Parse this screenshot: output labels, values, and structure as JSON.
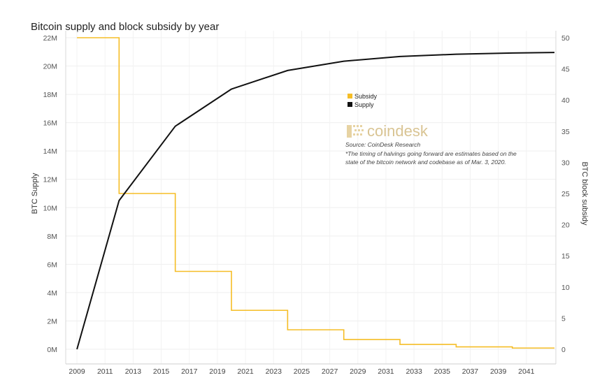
{
  "chart_data": {
    "type": "line",
    "title": "Bitcoin supply and block subsidy by year",
    "x": [
      2009,
      2012,
      2016,
      2020,
      2024,
      2028,
      2032,
      2036,
      2040,
      2043
    ],
    "x_ticks": [
      "2009",
      "2011",
      "2013",
      "2015",
      "2017",
      "2019",
      "2021",
      "2023",
      "2025",
      "2027",
      "2029",
      "2031",
      "2033",
      "2035",
      "2037",
      "2039",
      "2041"
    ],
    "ylabel_left": "BTC Supply",
    "ylabel_right": "BTC block subsidy",
    "ylim_left": [
      0,
      22000000
    ],
    "ylim_right": [
      0,
      50
    ],
    "y_ticks_left": [
      "0M",
      "2M",
      "4M",
      "6M",
      "8M",
      "10M",
      "12M",
      "14M",
      "16M",
      "18M",
      "20M",
      "22M"
    ],
    "y_ticks_right": [
      "0",
      "5",
      "10",
      "15",
      "20",
      "25",
      "30",
      "35",
      "40",
      "45",
      "50"
    ],
    "grid": true,
    "legend_position": "top-right",
    "series": [
      {
        "name": "Subsidy",
        "axis": "right",
        "step": true,
        "color": "#f5bd26",
        "x": [
          2009,
          2012,
          2016,
          2020,
          2024,
          2028,
          2032,
          2036,
          2040,
          2043
        ],
        "values": [
          50,
          25,
          12.5,
          6.25,
          3.125,
          1.5625,
          0.78125,
          0.390625,
          0.1953125,
          0.1953125
        ]
      },
      {
        "name": "Supply",
        "axis": "left",
        "step": false,
        "color": "#111111",
        "x": [
          2009,
          2012,
          2016,
          2020,
          2024,
          2028,
          2032,
          2036,
          2040,
          2043
        ],
        "values": [
          0,
          10500000,
          15750000,
          18375000,
          19687500,
          20343750,
          20671875,
          20835937,
          20917968,
          20960000
        ]
      }
    ],
    "annotations": {
      "brand": "coindesk",
      "source": "Source: CoinDesk Research",
      "note_line1": "*The timing of halvings going forward are estimates based on the",
      "note_line2": "state of the bitcoin network and codebase as of Mar. 3, 2020."
    }
  }
}
